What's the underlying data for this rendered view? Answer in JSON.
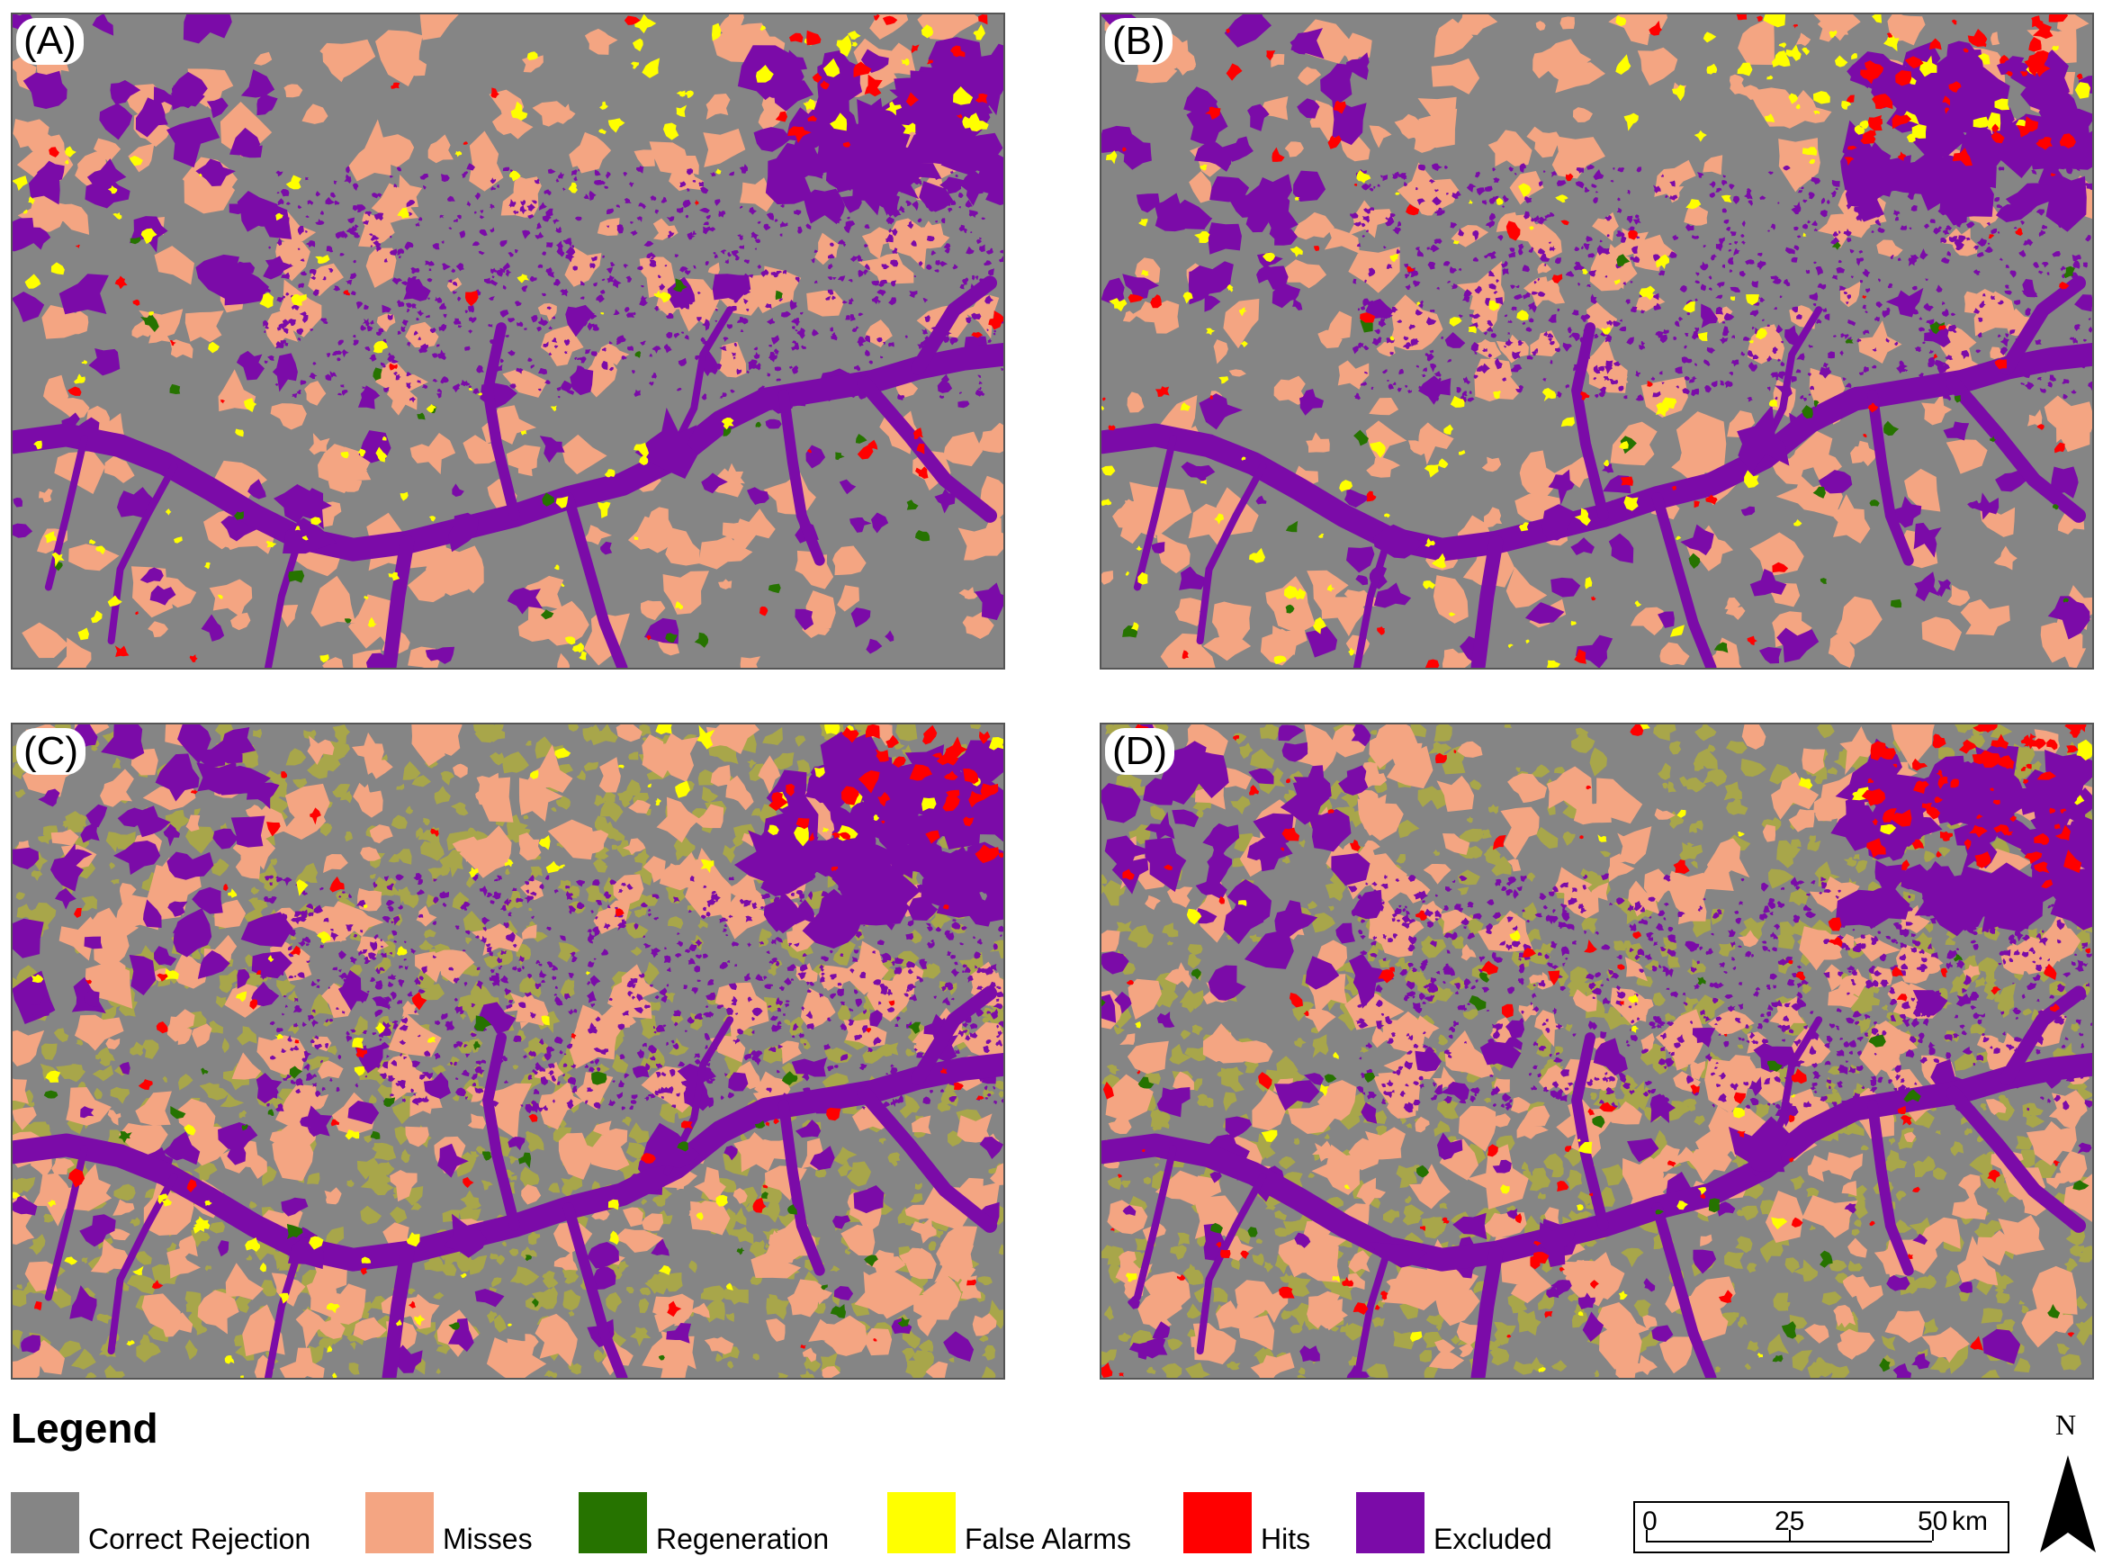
{
  "panels": [
    {
      "label": "(A)",
      "density": {
        "excluded": 0.9,
        "misses": 0.8,
        "falseAlarms": 0.35,
        "hits": 0.15,
        "regeneration": 0.2,
        "olive": 0.0
      }
    },
    {
      "label": "(B)",
      "density": {
        "excluded": 0.9,
        "misses": 0.9,
        "falseAlarms": 0.45,
        "hits": 0.3,
        "regeneration": 0.2,
        "olive": 0.0
      }
    },
    {
      "label": "(C)",
      "density": {
        "excluded": 1.0,
        "misses": 1.2,
        "falseAlarms": 0.25,
        "hits": 0.25,
        "regeneration": 0.25,
        "olive": 1.0
      }
    },
    {
      "label": "(D)",
      "density": {
        "excluded": 1.0,
        "misses": 1.3,
        "falseAlarms": 0.12,
        "hits": 0.5,
        "regeneration": 0.2,
        "olive": 0.9
      }
    }
  ],
  "legend": {
    "title": "Legend",
    "items": [
      {
        "label": "Correct Rejection",
        "color": "#858585"
      },
      {
        "label": "Misses",
        "color": "#f4a582"
      },
      {
        "label": "Regeneration",
        "color": "#267300"
      },
      {
        "label": "False Alarms",
        "color": "#ffff00"
      },
      {
        "label": "Hits",
        "color": "#ff0000"
      },
      {
        "label": "Excluded",
        "color": "#7b0ba8"
      }
    ]
  },
  "colors": {
    "correct_rejection": "#858585",
    "misses": "#f4a582",
    "regeneration": "#267300",
    "false_alarms": "#ffff00",
    "hits": "#ff0000",
    "excluded": "#7b0ba8",
    "olive_mixed": "#a8a64a"
  },
  "scale_bar": {
    "labels": [
      "0",
      "25",
      "50"
    ],
    "unit": "km"
  },
  "north_arrow": {
    "letter": "N"
  }
}
